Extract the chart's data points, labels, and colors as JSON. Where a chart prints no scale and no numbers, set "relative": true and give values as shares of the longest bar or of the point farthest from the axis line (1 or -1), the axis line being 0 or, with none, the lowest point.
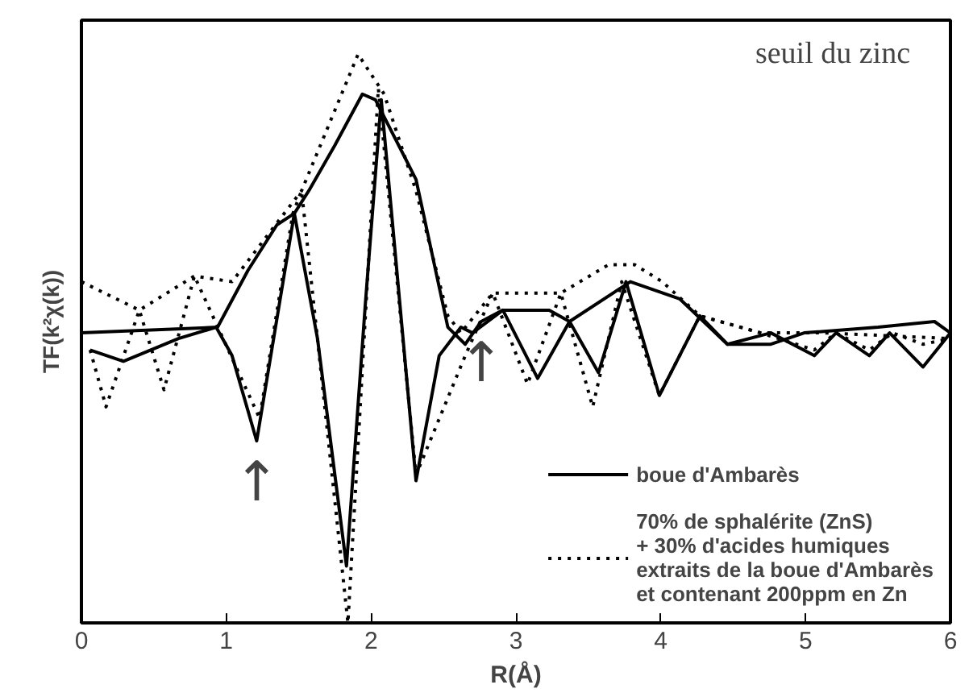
{
  "chart_data": {
    "type": "line",
    "relative": true,
    "xlabel": "R(Å)",
    "ylabel": "TF(k²χ(k))",
    "annotations": [
      "seuil du zinc",
      {
        "text": "↑",
        "x": 1.21,
        "y": 0.32
      },
      {
        "text": "↑",
        "x": 2.76,
        "y": 0.53
      }
    ],
    "xlim": [
      0,
      6
    ],
    "xticks": [
      0,
      1,
      2,
      3,
      4,
      5,
      6
    ],
    "grid": false,
    "legend": "bottom right",
    "marker": "none",
    "series": [
      {
        "name": "boue d'Ambarès",
        "color": "#000000",
        "line_style": "solid",
        "x": [
          0,
          0.94,
          1.15,
          1.35,
          1.47,
          1.57,
          1.75,
          1.94,
          2.03,
          2.31,
          2.53,
          2.65,
          2.76,
          2.91,
          3.23,
          3.37,
          3.79,
          4.13,
          4.46,
          4.76,
          4.99,
          5.5,
          5.89,
          6.0
        ],
        "values": [
          0.51,
          0.52,
          0.62,
          0.7,
          0.72,
          0.76,
          0.84,
          0.93,
          0.92,
          0.78,
          0.52,
          0.49,
          0.53,
          0.55,
          0.55,
          0.53,
          0.6,
          0.57,
          0.49,
          0.49,
          0.51,
          0.52,
          0.53,
          0.51
        ]
      },
      {
        "color": "#000000",
        "line_style": "solid",
        "x": [
          0.06,
          0.29,
          0.67,
          0.93,
          1.04,
          1.21,
          1.47,
          1.63,
          1.83,
          1.96,
          2.07,
          2.31,
          2.47,
          2.62,
          2.7,
          2.91,
          3.15,
          3.37,
          3.57,
          3.76,
          3.99,
          4.27,
          4.46,
          4.76,
          5.06,
          5.21,
          5.44,
          5.58,
          5.81,
          6.0
        ],
        "values": [
          0.48,
          0.46,
          0.5,
          0.52,
          0.47,
          0.32,
          0.72,
          0.5,
          0.1,
          0.56,
          0.92,
          0.25,
          0.47,
          0.52,
          0.51,
          0.55,
          0.43,
          0.53,
          0.44,
          0.6,
          0.4,
          0.54,
          0.49,
          0.51,
          0.47,
          0.51,
          0.47,
          0.51,
          0.45,
          0.51
        ]
      },
      {
        "name": "70% de sphalérite (ZnS)\n+ 30% d'acides humiques\nextraits de la boue d'Ambarès\net contenant 200ppm en Zn",
        "color": "#000000",
        "line_style": "dotted",
        "x": [
          0,
          0.4,
          0.78,
          1.04,
          1.52,
          1.91,
          2.09,
          2.31,
          2.53,
          2.62,
          2.84,
          3.06,
          3.31,
          3.64,
          3.82,
          4.01,
          4.27,
          4.69,
          5.13,
          6.0
        ],
        "values": [
          0.6,
          0.55,
          0.61,
          0.6,
          0.76,
          1.0,
          0.93,
          0.76,
          0.54,
          0.51,
          0.58,
          0.58,
          0.58,
          0.63,
          0.63,
          0.6,
          0.54,
          0.51,
          0.51,
          0.5
        ]
      },
      {
        "color": "#000000",
        "line_style": "dotted",
        "x": [
          0.06,
          0.17,
          0.4,
          0.57,
          0.78,
          1.23,
          1.46,
          1.52,
          1.84,
          2.05,
          2.31,
          2.65,
          2.84,
          3.08,
          3.31,
          3.53,
          3.73,
          3.99,
          4.27,
          4.69,
          5.06,
          5.21,
          5.44,
          5.6,
          5.81,
          6.0
        ],
        "values": [
          0.48,
          0.38,
          0.55,
          0.41,
          0.61,
          0.36,
          0.72,
          0.76,
          0.0,
          0.94,
          0.26,
          0.47,
          0.58,
          0.42,
          0.58,
          0.38,
          0.6,
          0.4,
          0.54,
          0.51,
          0.48,
          0.51,
          0.48,
          0.51,
          0.49,
          0.5
        ]
      }
    ]
  }
}
